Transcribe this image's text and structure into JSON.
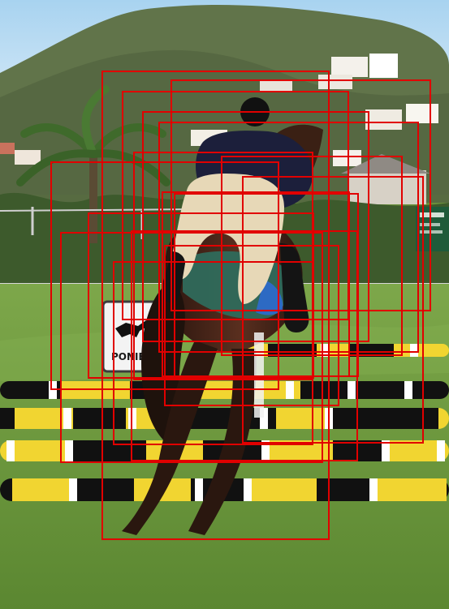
{
  "scene": {
    "sign_text": "PONIE",
    "colors": {
      "sky": "#9ccbe8",
      "hill": "#5f6f49",
      "grass": "#6f9a3e",
      "rail_yellow": "#f1d531",
      "rail_black": "#111111",
      "horse": "#3b2317",
      "rider_jacket": "#1c1f3b",
      "rider_pants": "#e7d8b7",
      "box_outline": "#e10000"
    }
  },
  "annotation": {
    "box_count": 16
  }
}
